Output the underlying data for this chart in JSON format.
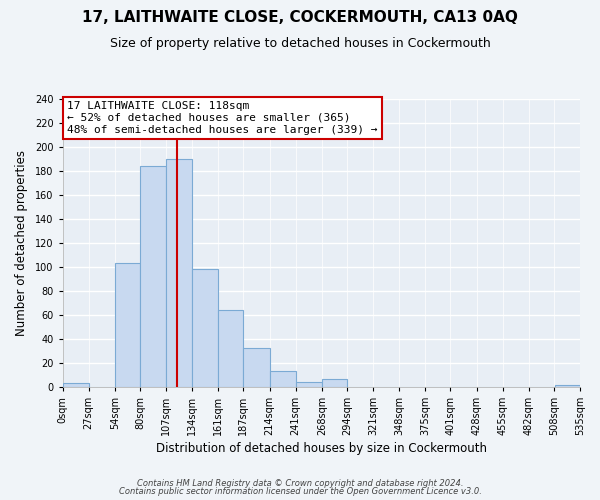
{
  "title": "17, LAITHWAITE CLOSE, COCKERMOUTH, CA13 0AQ",
  "subtitle": "Size of property relative to detached houses in Cockermouth",
  "xlabel": "Distribution of detached houses by size in Cockermouth",
  "ylabel": "Number of detached properties",
  "footer_lines": [
    "Contains HM Land Registry data © Crown copyright and database right 2024.",
    "Contains public sector information licensed under the Open Government Licence v3.0."
  ],
  "bar_edges": [
    0,
    27,
    54,
    80,
    107,
    134,
    161,
    187,
    214,
    241,
    268,
    294,
    321,
    348,
    375,
    401,
    428,
    455,
    482,
    509,
    535
  ],
  "bar_heights": [
    3,
    0,
    103,
    184,
    190,
    98,
    64,
    32,
    13,
    4,
    6,
    0,
    0,
    0,
    0,
    0,
    0,
    0,
    0,
    1
  ],
  "bar_color": "#c8d9f0",
  "bar_edge_color": "#7baad4",
  "property_value": 118,
  "vline_color": "#cc0000",
  "annotation_text": "17 LAITHWAITE CLOSE: 118sqm\n← 52% of detached houses are smaller (365)\n48% of semi-detached houses are larger (339) →",
  "annotation_box_edge_color": "#cc0000",
  "annotation_box_face_color": "#ffffff",
  "xlim": [
    0,
    535
  ],
  "ylim": [
    0,
    240
  ],
  "yticks": [
    0,
    20,
    40,
    60,
    80,
    100,
    120,
    140,
    160,
    180,
    200,
    220,
    240
  ],
  "xtick_labels": [
    "0sqm",
    "27sqm",
    "54sqm",
    "80sqm",
    "107sqm",
    "134sqm",
    "161sqm",
    "187sqm",
    "214sqm",
    "241sqm",
    "268sqm",
    "294sqm",
    "321sqm",
    "348sqm",
    "375sqm",
    "401sqm",
    "428sqm",
    "455sqm",
    "482sqm",
    "508sqm",
    "535sqm"
  ],
  "xtick_positions": [
    0,
    27,
    54,
    80,
    107,
    134,
    161,
    187,
    214,
    241,
    268,
    294,
    321,
    348,
    375,
    401,
    428,
    455,
    482,
    508,
    535
  ],
  "plot_bg_color": "#e8eef5",
  "fig_bg_color": "#f0f4f8",
  "grid_color": "#ffffff",
  "title_fontsize": 11,
  "subtitle_fontsize": 9,
  "label_fontsize": 8.5,
  "tick_fontsize": 7,
  "annotation_fontsize": 8,
  "footer_fontsize": 6
}
